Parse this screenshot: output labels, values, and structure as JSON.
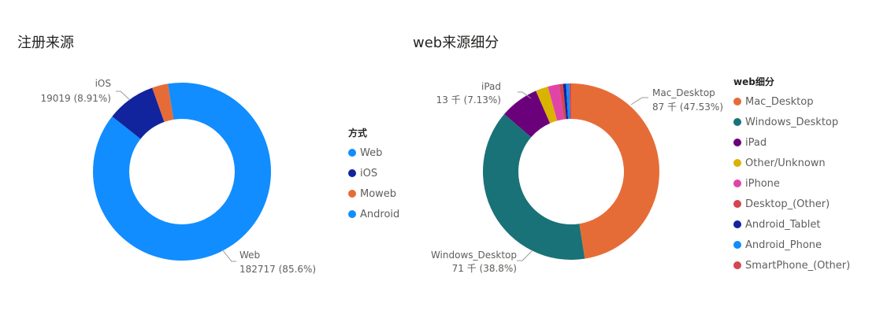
{
  "chart_data": [
    {
      "type": "pie",
      "variant": "donut",
      "title": "注册来源",
      "legend_title": "方式",
      "legend_position": "right",
      "categories": [
        "Web",
        "iOS",
        "Moweb",
        "Android"
      ],
      "values": [
        182717,
        19019,
        6200,
        5400
      ],
      "colors": [
        "#118dff",
        "#12239e",
        "#e66c37",
        "#118dff"
      ],
      "data_labels": [
        {
          "category": "iOS",
          "name": "iOS",
          "text": "19019 (8.91%)"
        },
        {
          "category": "Web",
          "name": "Web",
          "text": "182717 (85.6%)"
        }
      ]
    },
    {
      "type": "pie",
      "variant": "donut",
      "title": "web来源细分",
      "legend_title": "web细分",
      "legend_position": "right",
      "categories": [
        "Mac_Desktop",
        "Windows_Desktop",
        "iPad",
        "Other/Unknown",
        "iPhone",
        "Desktop_(Other)",
        "Android_Tablet",
        "Android_Phone",
        "SmartPhone_(Other)"
      ],
      "values": [
        87000,
        71000,
        13050,
        4200,
        3800,
        1300,
        1000,
        1100,
        600
      ],
      "colors": [
        "#e66c37",
        "#197278",
        "#6b007b",
        "#d9b300",
        "#e044a7",
        "#d64550",
        "#12239e",
        "#118dff",
        "#d64550"
      ],
      "data_labels": [
        {
          "category": "Mac_Desktop",
          "name": "Mac_Desktop",
          "text": "87 千 (47.53%)"
        },
        {
          "category": "iPad",
          "name": "iPad",
          "text": "13 千 (7.13%)"
        },
        {
          "category": "Windows_Desktop",
          "name": "Windows_Desktop",
          "text": "71 千 (38.8%)"
        }
      ]
    }
  ]
}
